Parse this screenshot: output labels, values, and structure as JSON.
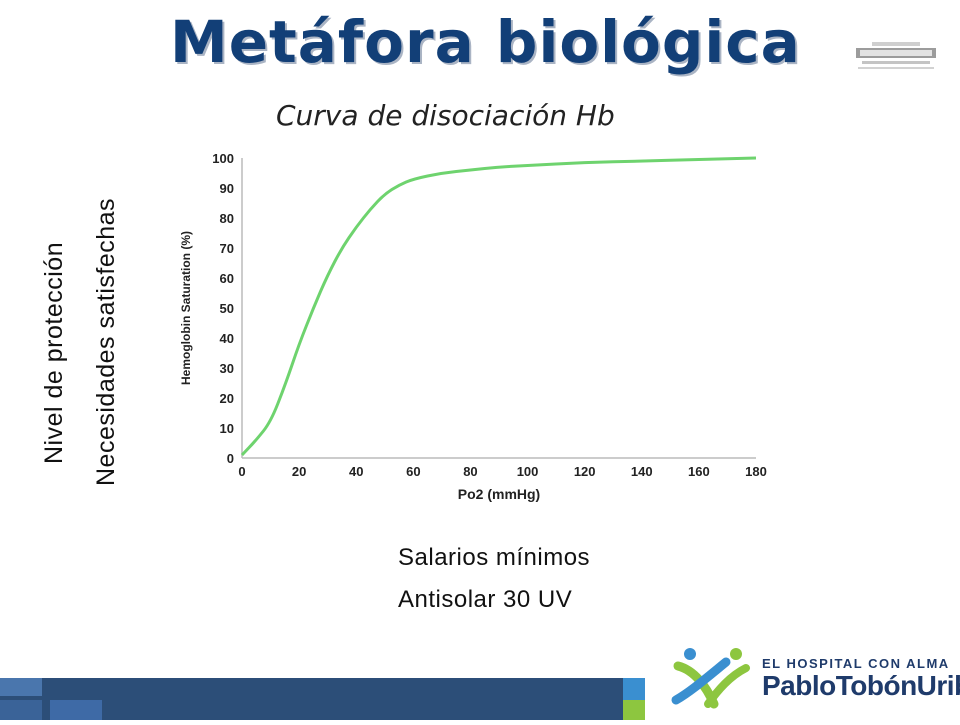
{
  "slide": {
    "title": "Metáfora biológica",
    "left_labels": [
      "Nivel de protección",
      "Necesidades satisfechas"
    ],
    "bottom_labels": [
      "Salarios mínimos",
      "Antisolar 30 UV"
    ]
  },
  "chart_data": {
    "type": "line",
    "title": "Curva de disociación Hb",
    "xlabel": "Po2 (mmHg)",
    "ylabel": "Hemoglobin Saturation (%)",
    "xlim": [
      0,
      180
    ],
    "ylim": [
      0,
      100
    ],
    "xticks": [
      0,
      20,
      40,
      60,
      80,
      100,
      120,
      140,
      160,
      180
    ],
    "yticks": [
      0,
      10,
      20,
      30,
      40,
      50,
      60,
      70,
      80,
      90,
      100
    ],
    "grid": false,
    "line_color": "#6ed36e",
    "x": [
      0,
      5,
      10,
      15,
      20,
      25,
      30,
      35,
      40,
      45,
      50,
      55,
      60,
      70,
      80,
      90,
      100,
      120,
      140,
      160,
      180
    ],
    "y": [
      1,
      6,
      12,
      24,
      38,
      50,
      61,
      70,
      77,
      83,
      88,
      91,
      93,
      95,
      96,
      97,
      97.5,
      98.5,
      99,
      99.5,
      100
    ]
  },
  "logos": {
    "corner_text": "HOSPITAL PABLO TOBÓN URIBE",
    "hospital_tagline": "EL HOSPITAL CON ALMA",
    "hospital_name": "PabloTobónUribe"
  },
  "colors": {
    "title": "#123f77",
    "footer": "#2c4e78",
    "footer_light": "#3e6aa6",
    "accent_green": "#8dc63f",
    "accent_blue": "#3a8fd0"
  }
}
